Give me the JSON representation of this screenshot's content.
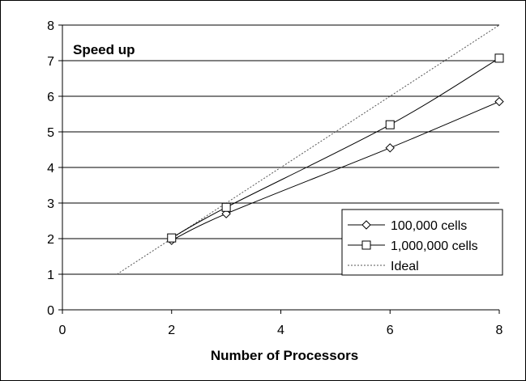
{
  "chart_data": {
    "type": "line",
    "title": "",
    "annotation": "Speed up",
    "xlabel": "Number of Processors",
    "ylabel": "",
    "xlim": [
      0,
      8
    ],
    "ylim": [
      0,
      8
    ],
    "xticks": [
      "0",
      "2",
      "4",
      "6",
      "8"
    ],
    "yticks": [
      "0",
      "1",
      "2",
      "3",
      "4",
      "5",
      "6",
      "7",
      "8"
    ],
    "grid": "horizontal",
    "legend_position": "bottom-right",
    "series": [
      {
        "name": "100,000 cells",
        "marker": "diamond",
        "color": "#000000",
        "x": [
          2,
          3,
          6,
          8
        ],
        "y": [
          1.95,
          2.7,
          4.55,
          5.85
        ]
      },
      {
        "name": "1,000,000 cells",
        "marker": "square",
        "color": "#000000",
        "x": [
          2,
          3,
          6,
          8
        ],
        "y": [
          2.02,
          2.88,
          5.2,
          7.07
        ]
      },
      {
        "name": "Ideal",
        "marker": "none",
        "style": "dotted",
        "color": "#555555",
        "x": [
          1,
          8
        ],
        "y": [
          1,
          8
        ]
      }
    ]
  }
}
